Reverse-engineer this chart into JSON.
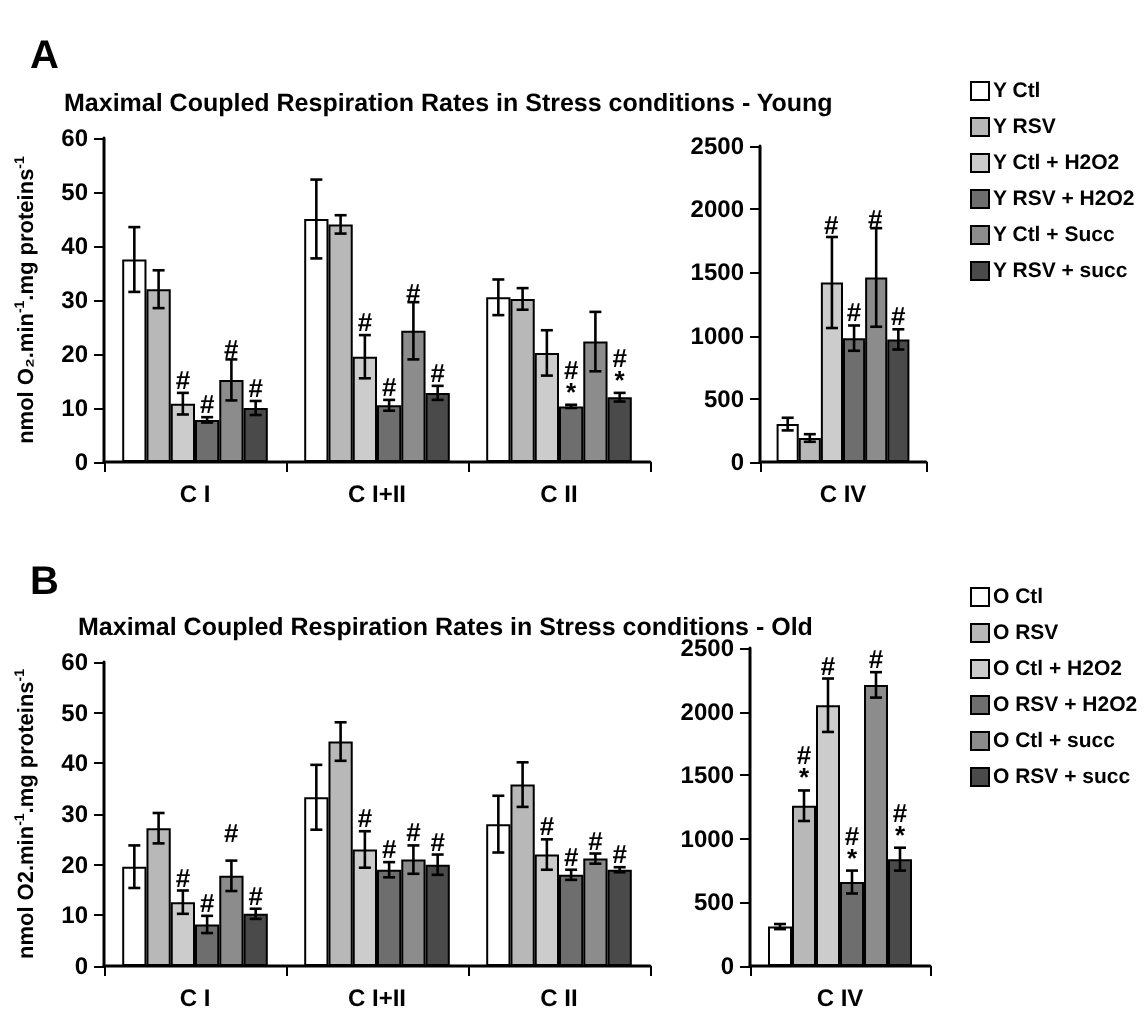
{
  "chart_data": [
    {
      "type": "bar",
      "title": "Maximal Coupled Respiration Rates in Stress conditions - Young",
      "ylabel": "nmol O₂.min$^{-1}$.mg proteins$^{-1}$",
      "categories": [
        "C I",
        "C I+II",
        "C II"
      ],
      "ylim": [
        0,
        60
      ],
      "yticks": [
        0,
        10,
        20,
        30,
        40,
        50,
        60
      ],
      "legend": false,
      "series": [
        {
          "color": "#ffffff",
          "values": [
            37.5,
            45,
            30.5
          ],
          "errors": [
            6,
            7.3,
            3.3
          ]
        },
        {
          "color": "#b8b8b8",
          "values": [
            32,
            44,
            30.2
          ],
          "errors": [
            3.5,
            1.7,
            2
          ]
        },
        {
          "color": "#cccccc",
          "values": [
            10.8,
            19.5,
            20.2
          ],
          "errors": [
            2,
            4,
            4.2
          ]
        },
        {
          "color": "#6e6e6e",
          "values": [
            7.8,
            10.5,
            10.3
          ],
          "errors": [
            0.5,
            1,
            0.3
          ]
        },
        {
          "color": "#8c8c8c",
          "values": [
            15.2,
            24.3,
            22.3
          ],
          "errors": [
            3.8,
            5.3,
            5.5
          ]
        },
        {
          "color": "#4a4a4a",
          "values": [
            10,
            12.8,
            12
          ],
          "errors": [
            1.3,
            1.3,
            0.8
          ]
        }
      ],
      "annotations": [
        "A",
        "#",
        "#",
        {
          "text": "#",
          "x": "C I",
          "y": 10.8
        },
        {
          "text": "#",
          "x": "C I",
          "y": 7.8
        },
        {
          "text": "#",
          "x": "C I",
          "y": 10
        },
        {
          "text": "#",
          "x": "C I+II",
          "y": 19.5
        },
        {
          "text": "#",
          "x": "C I+II",
          "y": 10.5
        },
        {
          "text": "#",
          "x": "C I+II",
          "y": 12.8
        },
        {
          "text": "#\n*",
          "x": "C II",
          "y": 10.3
        },
        {
          "text": "#\n*",
          "x": "C II",
          "y": 12
        }
      ]
    },
    {
      "type": "bar",
      "categories": [
        "C IV"
      ],
      "ylim": [
        0,
        2500
      ],
      "yticks": [
        0,
        500,
        1000,
        1500,
        2000,
        2500
      ],
      "legend": "right",
      "series": [
        {
          "name": "Y Ctl",
          "color": "#ffffff",
          "values": [
            300
          ],
          "errors": [
            50
          ]
        },
        {
          "name": "Y RSV",
          "color": "#b8b8b8",
          "values": [
            190
          ],
          "errors": [
            30
          ]
        },
        {
          "name": "Y Ctl + H2O2",
          "color": "#cccccc",
          "values": [
            1420
          ],
          "errors": [
            360
          ]
        },
        {
          "name": "Y RSV + H2O2",
          "color": "#6e6e6e",
          "values": [
            980
          ],
          "errors": [
            100
          ]
        },
        {
          "name": "Y Ctl + Succ",
          "color": "#8c8c8c",
          "values": [
            1460
          ],
          "errors": [
            390
          ]
        },
        {
          "name": "Y RSV + succ",
          "color": "#4a4a4a",
          "values": [
            970
          ],
          "errors": [
            80
          ]
        }
      ],
      "annotations": [
        "#",
        "#",
        {
          "text": "#",
          "x": "C IV",
          "y": 980
        },
        {
          "text": "#",
          "x": "C IV",
          "y": 970
        }
      ]
    },
    {
      "type": "bar",
      "title": "Maximal Coupled Respiration Rates in Stress conditions - Old",
      "ylabel": "nmol O2.min$^{-1}$.mg proteins$^{-1}$",
      "categories": [
        "C I",
        "C I+II",
        "C II"
      ],
      "ylim": [
        0,
        60
      ],
      "yticks": [
        0,
        10,
        20,
        30,
        40,
        50,
        60
      ],
      "legend": false,
      "series": [
        {
          "color": "#ffffff",
          "values": [
            19.6,
            33.3,
            28
          ],
          "errors": [
            4.2,
            6.4,
            5.6
          ]
        },
        {
          "color": "#b8b8b8",
          "values": [
            27.2,
            44.3,
            35.8
          ],
          "errors": [
            3,
            3.8,
            4.4
          ]
        },
        {
          "color": "#cccccc",
          "values": [
            12.6,
            23,
            22
          ],
          "errors": [
            2.3,
            3.6,
            3
          ]
        },
        {
          "color": "#6e6e6e",
          "values": [
            8.2,
            19,
            18
          ],
          "errors": [
            1.7,
            1.5,
            1
          ]
        },
        {
          "color": "#8c8c8c",
          "values": [
            17.8,
            21,
            21.2
          ],
          "errors": [
            3,
            2.8,
            1
          ]
        },
        {
          "color": "#4a4a4a",
          "values": [
            10.3,
            20,
            19
          ],
          "errors": [
            1,
            2,
            0.5
          ]
        }
      ],
      "annotations": [
        "B",
        "#",
        {
          "text": "#",
          "x": "C I",
          "y": 12.6
        },
        {
          "text": "#",
          "x": "C I",
          "y": 8.2
        },
        {
          "text": "#",
          "x": "C I",
          "y": 10.3
        },
        {
          "text": "#",
          "x": "C I+II",
          "y": 23
        },
        {
          "text": "#",
          "x": "C I+II",
          "y": 19
        },
        {
          "text": "#",
          "x": "C I+II",
          "y": 21
        },
        {
          "text": "#",
          "x": "C I+II",
          "y": 20
        },
        {
          "text": "#",
          "x": "C II",
          "y": 22
        },
        {
          "text": "#",
          "x": "C II",
          "y": 18
        },
        {
          "text": "#",
          "x": "C II",
          "y": 21.2
        },
        {
          "text": "#",
          "x": "C II",
          "y": 19
        }
      ]
    },
    {
      "type": "bar",
      "categories": [
        "C IV"
      ],
      "ylim": [
        0,
        2500
      ],
      "yticks": [
        0,
        500,
        1000,
        1500,
        2000,
        2500
      ],
      "legend": "right",
      "series": [
        {
          "name": "O Ctl",
          "color": "#ffffff",
          "values": [
            310
          ],
          "errors": [
            20
          ]
        },
        {
          "name": "O RSV",
          "color": "#b8b8b8",
          "values": [
            1260
          ],
          "errors": [
            120
          ]
        },
        {
          "name": "O Ctl + H2O2",
          "color": "#cccccc",
          "values": [
            2050
          ],
          "errors": [
            210
          ]
        },
        {
          "name": "O RSV + H2O2",
          "color": "#6e6e6e",
          "values": [
            660
          ],
          "errors": [
            90
          ]
        },
        {
          "name": "O Ctl + succ",
          "color": "#8c8c8c",
          "values": [
            2210
          ],
          "errors": [
            100
          ]
        },
        {
          "name": "O RSV + succ",
          "color": "#4a4a4a",
          "values": [
            840
          ],
          "errors": [
            90
          ]
        }
      ],
      "annotations": [
        {
          "text": "#\n*",
          "x": "C IV",
          "y": 1260
        },
        {
          "text": "#",
          "x": "C IV",
          "y": 2050
        },
        {
          "text": "#\n*",
          "x": "C IV",
          "y": 660
        },
        {
          "text": "#",
          "x": "C IV",
          "y": 2210
        },
        {
          "text": "#\n*",
          "x": "C IV",
          "y": 840
        }
      ]
    }
  ]
}
